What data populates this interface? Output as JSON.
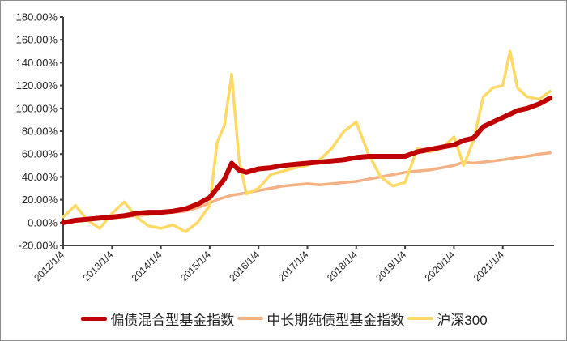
{
  "chart_data": {
    "type": "line",
    "title": "",
    "xlabel": "",
    "ylabel": "",
    "ylim": [
      -20,
      180
    ],
    "y_ticks": [
      "180.00%",
      "160.00%",
      "140.00%",
      "120.00%",
      "100.00%",
      "80.00%",
      "60.00%",
      "40.00%",
      "20.00%",
      "0.00%",
      "-20.00%"
    ],
    "x_ticks": [
      "2012/1/4",
      "2013/1/4",
      "2014/1/4",
      "2015/1/4",
      "2016/1/4",
      "2017/1/4",
      "2018/1/4",
      "2019/1/4",
      "2020/1/4",
      "2021/1/4"
    ],
    "grid": false,
    "legend_position": "bottom",
    "x": [
      2012.0,
      2012.25,
      2012.5,
      2012.75,
      2013.0,
      2013.25,
      2013.5,
      2013.75,
      2014.0,
      2014.25,
      2014.5,
      2014.75,
      2015.0,
      2015.15,
      2015.3,
      2015.45,
      2015.6,
      2015.75,
      2016.0,
      2016.25,
      2016.5,
      2016.75,
      2017.0,
      2017.25,
      2017.5,
      2017.75,
      2018.0,
      2018.25,
      2018.5,
      2018.75,
      2019.0,
      2019.25,
      2019.5,
      2019.75,
      2020.0,
      2020.2,
      2020.4,
      2020.6,
      2020.8,
      2021.0,
      2021.15,
      2021.3,
      2021.5,
      2021.75,
      2021.97
    ],
    "series": [
      {
        "name": "偏债混合型基金指数",
        "color": "#c00000",
        "values": [
          0,
          2,
          3,
          4,
          5,
          6,
          8,
          9,
          9,
          10,
          12,
          16,
          22,
          30,
          38,
          52,
          46,
          44,
          47,
          48,
          50,
          51,
          52,
          53,
          54,
          55,
          57,
          58,
          58,
          58,
          58,
          62,
          64,
          66,
          68,
          72,
          74,
          84,
          88,
          92,
          95,
          98,
          100,
          104,
          109
        ]
      },
      {
        "name": "中长期纯债型基金指数",
        "color": "#f4b183",
        "values": [
          0,
          1,
          2,
          3,
          4,
          5,
          6,
          7,
          8,
          9,
          10,
          13,
          17,
          20,
          22,
          24,
          25,
          26,
          28,
          30,
          32,
          33,
          34,
          33,
          34,
          35,
          36,
          38,
          40,
          42,
          44,
          45,
          46,
          48,
          50,
          53,
          52,
          53,
          54,
          55,
          56,
          57,
          58,
          60,
          61
        ]
      },
      {
        "name": "沪深300",
        "color": "#ffd966",
        "values": [
          5,
          15,
          2,
          -5,
          8,
          18,
          5,
          -3,
          -5,
          -2,
          -8,
          0,
          15,
          70,
          85,
          130,
          55,
          25,
          30,
          42,
          45,
          48,
          50,
          55,
          65,
          80,
          88,
          60,
          40,
          32,
          35,
          65,
          62,
          65,
          75,
          50,
          72,
          110,
          118,
          120,
          150,
          118,
          110,
          108,
          115
        ]
      }
    ]
  },
  "legend": {
    "items": [
      {
        "label": "偏债混合型基金指数",
        "color": "#c00000"
      },
      {
        "label": "中长期纯债型基金指数",
        "color": "#f4b183"
      },
      {
        "label": "沪深300",
        "color": "#ffd966"
      }
    ]
  }
}
